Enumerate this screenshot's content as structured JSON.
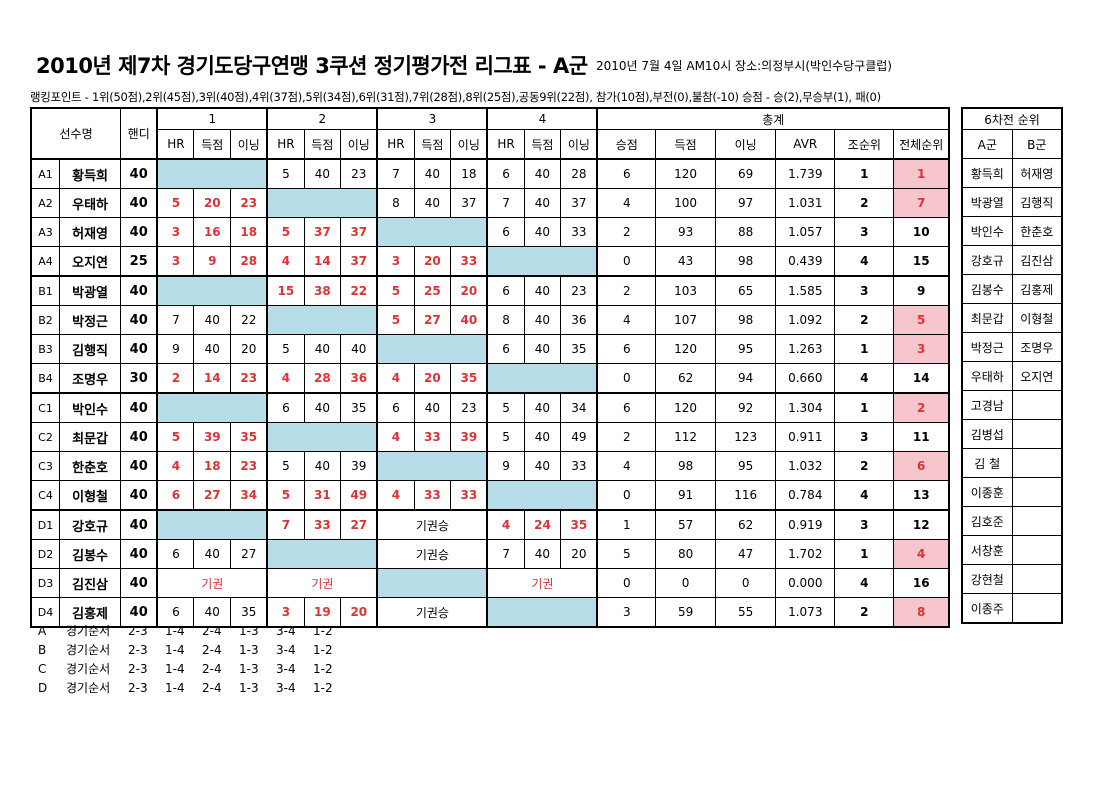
{
  "title": "2010년 제7차 경기도당구연맹 3쿠션 정기평가전 리그표 - A군",
  "meta": "2010년 7월 4일 AM10시  장소:의정부시(박인수당구클럽)",
  "rules": "랭킹포인트 - 1위(50점),2위(45점),3위(40점),4위(37점),5위(34점),6위(31점),7위(28점),8위(25점),공동9위(22점), 참가(10점),부전(0),불참(-10)  승점 - 승(2),무승부(1), 패(0)",
  "header": {
    "player": "선수명",
    "handi": "핸디",
    "rounds": [
      "1",
      "2",
      "3",
      "4"
    ],
    "total": "총계",
    "sub": [
      "HR",
      "득점",
      "이닝"
    ],
    "tot_sub": [
      "승점",
      "득점",
      "이닝",
      "AVR",
      "조순위",
      "전체순위"
    ]
  },
  "rows": [
    {
      "id": "A1",
      "name": "황득희",
      "handi": "40",
      "r": [
        null,
        {
          "v": [
            "5",
            "40",
            "23"
          ]
        },
        {
          "v": [
            "7",
            "40",
            "18"
          ]
        },
        {
          "v": [
            "6",
            "40",
            "28"
          ]
        }
      ],
      "t": [
        "6",
        "120",
        "69",
        "1.739",
        "1",
        "1"
      ],
      "hl": true
    },
    {
      "id": "A2",
      "name": "우태하",
      "handi": "40",
      "r": [
        {
          "v": [
            "5",
            "20",
            "23"
          ],
          "red": true
        },
        null,
        {
          "v": [
            "8",
            "40",
            "37"
          ]
        },
        {
          "v": [
            "7",
            "40",
            "37"
          ]
        }
      ],
      "t": [
        "4",
        "100",
        "97",
        "1.031",
        "2",
        "7"
      ],
      "hl": true
    },
    {
      "id": "A3",
      "name": "허재영",
      "handi": "40",
      "r": [
        {
          "v": [
            "3",
            "16",
            "18"
          ],
          "red": true
        },
        {
          "v": [
            "5",
            "37",
            "37"
          ],
          "red": true
        },
        null,
        {
          "v": [
            "6",
            "40",
            "33"
          ]
        }
      ],
      "t": [
        "2",
        "93",
        "88",
        "1.057",
        "3",
        "10"
      ],
      "hl": false
    },
    {
      "id": "A4",
      "name": "오지연",
      "handi": "25",
      "r": [
        {
          "v": [
            "3",
            "9",
            "28"
          ],
          "red": true
        },
        {
          "v": [
            "4",
            "14",
            "37"
          ],
          "red": true
        },
        {
          "v": [
            "3",
            "20",
            "33"
          ],
          "red": true
        },
        null
      ],
      "t": [
        "0",
        "43",
        "98",
        "0.439",
        "4",
        "15"
      ],
      "hl": false
    },
    {
      "id": "B1",
      "name": "박광열",
      "handi": "40",
      "r": [
        null,
        {
          "v": [
            "15",
            "38",
            "22"
          ],
          "red": true
        },
        {
          "v": [
            "5",
            "25",
            "20"
          ],
          "red": true
        },
        {
          "v": [
            "6",
            "40",
            "23"
          ]
        }
      ],
      "t": [
        "2",
        "103",
        "65",
        "1.585",
        "3",
        "9"
      ],
      "hl": false
    },
    {
      "id": "B2",
      "name": "박정근",
      "handi": "40",
      "r": [
        {
          "v": [
            "7",
            "40",
            "22"
          ]
        },
        null,
        {
          "v": [
            "5",
            "27",
            "40"
          ],
          "red": true
        },
        {
          "v": [
            "8",
            "40",
            "36"
          ]
        }
      ],
      "t": [
        "4",
        "107",
        "98",
        "1.092",
        "2",
        "5"
      ],
      "hl": true
    },
    {
      "id": "B3",
      "name": "김행직",
      "handi": "40",
      "r": [
        {
          "v": [
            "9",
            "40",
            "20"
          ]
        },
        {
          "v": [
            "5",
            "40",
            "40"
          ]
        },
        null,
        {
          "v": [
            "6",
            "40",
            "35"
          ]
        }
      ],
      "t": [
        "6",
        "120",
        "95",
        "1.263",
        "1",
        "3"
      ],
      "hl": true
    },
    {
      "id": "B4",
      "name": "조명우",
      "handi": "30",
      "r": [
        {
          "v": [
            "2",
            "14",
            "23"
          ],
          "red": true
        },
        {
          "v": [
            "4",
            "28",
            "36"
          ],
          "red": true
        },
        {
          "v": [
            "4",
            "20",
            "35"
          ],
          "red": true
        },
        null
      ],
      "t": [
        "0",
        "62",
        "94",
        "0.660",
        "4",
        "14"
      ],
      "hl": false
    },
    {
      "id": "C1",
      "name": "박인수",
      "handi": "40",
      "r": [
        null,
        {
          "v": [
            "6",
            "40",
            "35"
          ]
        },
        {
          "v": [
            "6",
            "40",
            "23"
          ]
        },
        {
          "v": [
            "5",
            "40",
            "34"
          ]
        }
      ],
      "t": [
        "6",
        "120",
        "92",
        "1.304",
        "1",
        "2"
      ],
      "hl": true
    },
    {
      "id": "C2",
      "name": "최문갑",
      "handi": "40",
      "r": [
        {
          "v": [
            "5",
            "39",
            "35"
          ],
          "red": true
        },
        null,
        {
          "v": [
            "4",
            "33",
            "39"
          ],
          "red": true
        },
        {
          "v": [
            "5",
            "40",
            "49"
          ]
        }
      ],
      "t": [
        "2",
        "112",
        "123",
        "0.911",
        "3",
        "11"
      ],
      "hl": false
    },
    {
      "id": "C3",
      "name": "한춘호",
      "handi": "40",
      "r": [
        {
          "v": [
            "4",
            "18",
            "23"
          ],
          "red": true
        },
        {
          "v": [
            "5",
            "40",
            "39"
          ]
        },
        null,
        {
          "v": [
            "9",
            "40",
            "33"
          ]
        }
      ],
      "t": [
        "4",
        "98",
        "95",
        "1.032",
        "2",
        "6"
      ],
      "hl": true
    },
    {
      "id": "C4",
      "name": "이형철",
      "handi": "40",
      "r": [
        {
          "v": [
            "6",
            "27",
            "34"
          ],
          "red": true
        },
        {
          "v": [
            "5",
            "31",
            "49"
          ],
          "red": true
        },
        {
          "v": [
            "4",
            "33",
            "33"
          ],
          "red": true
        },
        null
      ],
      "t": [
        "0",
        "91",
        "116",
        "0.784",
        "4",
        "13"
      ],
      "hl": false
    },
    {
      "id": "D1",
      "name": "강호규",
      "handi": "40",
      "r": [
        null,
        {
          "v": [
            "7",
            "33",
            "27"
          ],
          "red": true
        },
        {
          "text": "기권승"
        },
        {
          "v": [
            "4",
            "24",
            "35"
          ],
          "red": true
        }
      ],
      "t": [
        "1",
        "57",
        "62",
        "0.919",
        "3",
        "12"
      ],
      "hl": false
    },
    {
      "id": "D2",
      "name": "김봉수",
      "handi": "40",
      "r": [
        {
          "v": [
            "6",
            "40",
            "27"
          ]
        },
        null,
        {
          "text": "기권승"
        },
        {
          "v": [
            "7",
            "40",
            "20"
          ]
        }
      ],
      "t": [
        "5",
        "80",
        "47",
        "1.702",
        "1",
        "4"
      ],
      "hl": true
    },
    {
      "id": "D3",
      "name": "김진삼",
      "handi": "40",
      "r": [
        {
          "text": "기권",
          "red": true
        },
        {
          "text": "기권",
          "red": true
        },
        null,
        {
          "text": "기권",
          "red": true
        }
      ],
      "t": [
        "0",
        "0",
        "0",
        "0.000",
        "4",
        "16"
      ],
      "hl": false
    },
    {
      "id": "D4",
      "name": "김홍제",
      "handi": "40",
      "r": [
        {
          "v": [
            "6",
            "40",
            "35"
          ]
        },
        {
          "v": [
            "3",
            "19",
            "20"
          ],
          "red": true
        },
        {
          "text": "기권승"
        },
        null
      ],
      "t": [
        "3",
        "59",
        "55",
        "1.073",
        "2",
        "8"
      ],
      "hl": true
    }
  ],
  "rank_box": {
    "title": "6차전 순위",
    "cols": [
      "A군",
      "B군"
    ],
    "rows": [
      [
        "황득희",
        "허재영"
      ],
      [
        "박광열",
        "김행직"
      ],
      [
        "박인수",
        "한춘호"
      ],
      [
        "강호규",
        "김진삼"
      ],
      [
        "김봉수",
        "김홍제"
      ],
      [
        "최문갑",
        "이형철"
      ],
      [
        "박정근",
        "조명우"
      ],
      [
        "우태하",
        "오지연"
      ],
      [
        "고경남",
        ""
      ],
      [
        "김병섭",
        ""
      ],
      [
        "김 철",
        ""
      ],
      [
        "이종훈",
        ""
      ],
      [
        "김호준",
        ""
      ],
      [
        "서창훈",
        ""
      ],
      [
        "강현철",
        ""
      ],
      [
        "이종주",
        ""
      ]
    ]
  },
  "order": [
    {
      "g": "A",
      "label": "경기순서",
      "seq": [
        "2-3",
        "1-4",
        "2-4",
        "1-3",
        "3-4",
        "1-2"
      ]
    },
    {
      "g": "B",
      "label": "경기순서",
      "seq": [
        "2-3",
        "1-4",
        "2-4",
        "1-3",
        "3-4",
        "1-2"
      ]
    },
    {
      "g": "C",
      "label": "경기순서",
      "seq": [
        "2-3",
        "1-4",
        "2-4",
        "1-3",
        "3-4",
        "1-2"
      ]
    },
    {
      "g": "D",
      "label": "경기순서",
      "seq": [
        "2-3",
        "1-4",
        "2-4",
        "1-3",
        "3-4",
        "1-2"
      ]
    }
  ],
  "colors": {
    "cell_blue": "#b7dde8",
    "cell_pink": "#f7c5cc",
    "red": "#dd3333"
  }
}
